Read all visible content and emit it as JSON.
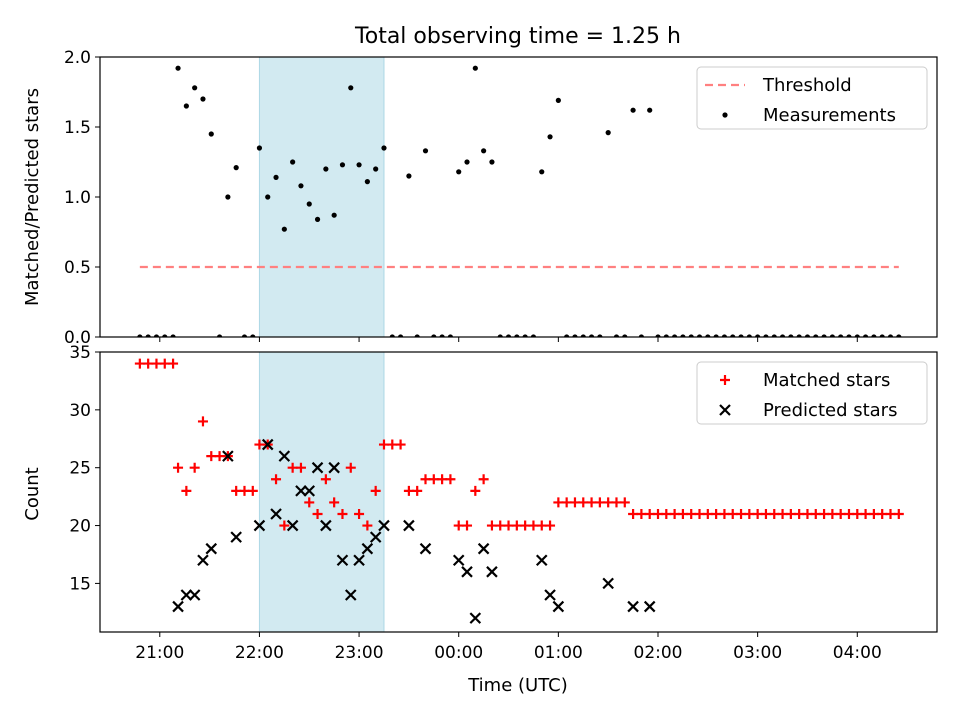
{
  "title": "Total observing time = 1.25 h",
  "colors": {
    "threshold": "#ff8080",
    "shade": "#add8e6",
    "matched": "#ff0000",
    "predicted": "#000000",
    "measurement": "#000000"
  },
  "chart_data": [
    {
      "type": "scatter",
      "ylabel": "Matched/Predicted stars",
      "xlim": [
        "20:24",
        "04:48"
      ],
      "ylim": [
        0,
        2.0
      ],
      "yticks": [
        "0.0",
        "0.5",
        "1.0",
        "1.5",
        "2.0"
      ],
      "xticks": [
        "21:00",
        "22:00",
        "23:00",
        "00:00",
        "01:00",
        "02:00",
        "03:00",
        "04:00"
      ],
      "shaded_region": [
        "22:00",
        "23:15"
      ],
      "legend": {
        "placement": "top-right",
        "entries": [
          "Threshold",
          "Measurements"
        ]
      },
      "threshold": {
        "name": "Threshold",
        "y": 0.5,
        "x_range": [
          "20:48",
          "04:25"
        ]
      },
      "measurements": {
        "name": "Measurements",
        "points": [
          [
            "20:48",
            0
          ],
          [
            "20:53",
            0
          ],
          [
            "20:58",
            0
          ],
          [
            "21:03",
            0
          ],
          [
            "21:08",
            0
          ],
          [
            "21:11",
            1.92
          ],
          [
            "21:16",
            1.65
          ],
          [
            "21:21",
            1.78
          ],
          [
            "21:26",
            1.7
          ],
          [
            "21:31",
            1.45
          ],
          [
            "21:36",
            0
          ],
          [
            "21:41",
            1.0
          ],
          [
            "21:46",
            1.21
          ],
          [
            "21:51",
            0
          ],
          [
            "21:56",
            0
          ],
          [
            "22:00",
            1.35
          ],
          [
            "22:05",
            1.0
          ],
          [
            "22:10",
            1.14
          ],
          [
            "22:15",
            0.77
          ],
          [
            "22:20",
            1.25
          ],
          [
            "22:25",
            1.08
          ],
          [
            "22:30",
            0.95
          ],
          [
            "22:35",
            0.84
          ],
          [
            "22:40",
            1.2
          ],
          [
            "22:45",
            0.87
          ],
          [
            "22:50",
            1.23
          ],
          [
            "22:55",
            1.78
          ],
          [
            "23:00",
            1.23
          ],
          [
            "23:05",
            1.11
          ],
          [
            "23:10",
            1.2
          ],
          [
            "23:15",
            1.35
          ],
          [
            "23:20",
            0
          ],
          [
            "23:25",
            0
          ],
          [
            "23:30",
            1.15
          ],
          [
            "23:35",
            0
          ],
          [
            "23:40",
            1.33
          ],
          [
            "23:45",
            0
          ],
          [
            "23:50",
            0
          ],
          [
            "23:55",
            0
          ],
          [
            "00:00",
            1.18
          ],
          [
            "00:05",
            1.25
          ],
          [
            "00:10",
            1.92
          ],
          [
            "00:15",
            1.33
          ],
          [
            "00:20",
            1.25
          ],
          [
            "00:25",
            0
          ],
          [
            "00:30",
            0
          ],
          [
            "00:35",
            0
          ],
          [
            "00:40",
            0
          ],
          [
            "00:45",
            0
          ],
          [
            "00:50",
            1.18
          ],
          [
            "00:55",
            1.43
          ],
          [
            "01:00",
            1.69
          ],
          [
            "01:05",
            0
          ],
          [
            "01:10",
            0
          ],
          [
            "01:15",
            0
          ],
          [
            "01:20",
            0
          ],
          [
            "01:25",
            0
          ],
          [
            "01:30",
            1.46
          ],
          [
            "01:35",
            0
          ],
          [
            "01:40",
            0
          ],
          [
            "01:45",
            1.62
          ],
          [
            "01:50",
            0
          ],
          [
            "01:55",
            1.62
          ],
          [
            "02:00",
            0
          ],
          [
            "02:05",
            0
          ],
          [
            "02:10",
            0
          ],
          [
            "02:15",
            0
          ],
          [
            "02:20",
            0
          ],
          [
            "02:25",
            0
          ],
          [
            "02:30",
            0
          ],
          [
            "02:35",
            0
          ],
          [
            "02:40",
            0
          ],
          [
            "02:45",
            0
          ],
          [
            "02:50",
            0
          ],
          [
            "02:55",
            0
          ],
          [
            "03:00",
            0
          ],
          [
            "03:05",
            0
          ],
          [
            "03:10",
            0
          ],
          [
            "03:15",
            0
          ],
          [
            "03:20",
            0
          ],
          [
            "03:25",
            0
          ],
          [
            "03:30",
            0
          ],
          [
            "03:35",
            0
          ],
          [
            "03:40",
            0
          ],
          [
            "03:45",
            0
          ],
          [
            "03:50",
            0
          ],
          [
            "03:55",
            0
          ],
          [
            "04:00",
            0
          ],
          [
            "04:05",
            0
          ],
          [
            "04:10",
            0
          ],
          [
            "04:15",
            0
          ],
          [
            "04:20",
            0
          ],
          [
            "04:25",
            0
          ]
        ]
      }
    },
    {
      "type": "scatter",
      "ylabel": "Count",
      "xlabel": "Time (UTC)",
      "xlim": [
        "20:24",
        "04:48"
      ],
      "ylim": [
        10.8,
        35
      ],
      "yticks": [
        "15",
        "20",
        "25",
        "30",
        "35"
      ],
      "xticks": [
        "21:00",
        "22:00",
        "23:00",
        "00:00",
        "01:00",
        "02:00",
        "03:00",
        "04:00"
      ],
      "shaded_region": [
        "22:00",
        "23:15"
      ],
      "legend": {
        "placement": "top-right",
        "entries": [
          "Matched stars",
          "Predicted stars"
        ]
      },
      "series": [
        {
          "name": "Matched stars",
          "marker": "+",
          "points": [
            [
              "20:48",
              34
            ],
            [
              "20:53",
              34
            ],
            [
              "20:58",
              34
            ],
            [
              "21:03",
              34
            ],
            [
              "21:08",
              34
            ],
            [
              "21:11",
              25
            ],
            [
              "21:16",
              23
            ],
            [
              "21:21",
              25
            ],
            [
              "21:26",
              29
            ],
            [
              "21:31",
              26
            ],
            [
              "21:36",
              26
            ],
            [
              "21:41",
              26
            ],
            [
              "21:46",
              23
            ],
            [
              "21:51",
              23
            ],
            [
              "21:56",
              23
            ],
            [
              "22:00",
              27
            ],
            [
              "22:05",
              27
            ],
            [
              "22:10",
              24
            ],
            [
              "22:15",
              20
            ],
            [
              "22:20",
              25
            ],
            [
              "22:25",
              25
            ],
            [
              "22:30",
              22
            ],
            [
              "22:35",
              21
            ],
            [
              "22:40",
              24
            ],
            [
              "22:45",
              22
            ],
            [
              "22:50",
              21
            ],
            [
              "22:55",
              25
            ],
            [
              "23:00",
              21
            ],
            [
              "23:05",
              20
            ],
            [
              "23:10",
              23
            ],
            [
              "23:15",
              27
            ],
            [
              "23:20",
              27
            ],
            [
              "23:25",
              27
            ],
            [
              "23:30",
              23
            ],
            [
              "23:35",
              23
            ],
            [
              "23:40",
              24
            ],
            [
              "23:45",
              24
            ],
            [
              "23:50",
              24
            ],
            [
              "23:55",
              24
            ],
            [
              "00:00",
              20
            ],
            [
              "00:05",
              20
            ],
            [
              "00:10",
              23
            ],
            [
              "00:15",
              24
            ],
            [
              "00:20",
              20
            ],
            [
              "00:25",
              20
            ],
            [
              "00:30",
              20
            ],
            [
              "00:35",
              20
            ],
            [
              "00:40",
              20
            ],
            [
              "00:45",
              20
            ],
            [
              "00:50",
              20
            ],
            [
              "00:55",
              20
            ],
            [
              "01:00",
              22
            ],
            [
              "01:05",
              22
            ],
            [
              "01:10",
              22
            ],
            [
              "01:15",
              22
            ],
            [
              "01:20",
              22
            ],
            [
              "01:25",
              22
            ],
            [
              "01:30",
              22
            ],
            [
              "01:35",
              22
            ],
            [
              "01:40",
              22
            ],
            [
              "01:45",
              21
            ],
            [
              "01:50",
              21
            ],
            [
              "01:55",
              21
            ],
            [
              "02:00",
              21
            ],
            [
              "02:05",
              21
            ],
            [
              "02:10",
              21
            ],
            [
              "02:15",
              21
            ],
            [
              "02:20",
              21
            ],
            [
              "02:25",
              21
            ],
            [
              "02:30",
              21
            ],
            [
              "02:35",
              21
            ],
            [
              "02:40",
              21
            ],
            [
              "02:45",
              21
            ],
            [
              "02:50",
              21
            ],
            [
              "02:55",
              21
            ],
            [
              "03:00",
              21
            ],
            [
              "03:05",
              21
            ],
            [
              "03:10",
              21
            ],
            [
              "03:15",
              21
            ],
            [
              "03:20",
              21
            ],
            [
              "03:25",
              21
            ],
            [
              "03:30",
              21
            ],
            [
              "03:35",
              21
            ],
            [
              "03:40",
              21
            ],
            [
              "03:45",
              21
            ],
            [
              "03:50",
              21
            ],
            [
              "03:55",
              21
            ],
            [
              "04:00",
              21
            ],
            [
              "04:05",
              21
            ],
            [
              "04:10",
              21
            ],
            [
              "04:15",
              21
            ],
            [
              "04:20",
              21
            ],
            [
              "04:25",
              21
            ]
          ]
        },
        {
          "name": "Predicted stars",
          "marker": "x",
          "points": [
            [
              "21:11",
              13
            ],
            [
              "21:16",
              14
            ],
            [
              "21:21",
              14
            ],
            [
              "21:26",
              17
            ],
            [
              "21:31",
              18
            ],
            [
              "21:41",
              26
            ],
            [
              "21:46",
              19
            ],
            [
              "22:00",
              20
            ],
            [
              "22:05",
              27
            ],
            [
              "22:10",
              21
            ],
            [
              "22:15",
              26
            ],
            [
              "22:20",
              20
            ],
            [
              "22:25",
              23
            ],
            [
              "22:30",
              23
            ],
            [
              "22:35",
              25
            ],
            [
              "22:40",
              20
            ],
            [
              "22:45",
              25
            ],
            [
              "22:50",
              17
            ],
            [
              "22:55",
              14
            ],
            [
              "23:00",
              17
            ],
            [
              "23:05",
              18
            ],
            [
              "23:10",
              19
            ],
            [
              "23:15",
              20
            ],
            [
              "23:30",
              20
            ],
            [
              "23:40",
              18
            ],
            [
              "00:00",
              17
            ],
            [
              "00:05",
              16
            ],
            [
              "00:10",
              12
            ],
            [
              "00:15",
              18
            ],
            [
              "00:20",
              16
            ],
            [
              "00:50",
              17
            ],
            [
              "00:55",
              14
            ],
            [
              "01:00",
              13
            ],
            [
              "01:30",
              15
            ],
            [
              "01:45",
              13
            ],
            [
              "01:55",
              13
            ]
          ]
        }
      ]
    }
  ]
}
